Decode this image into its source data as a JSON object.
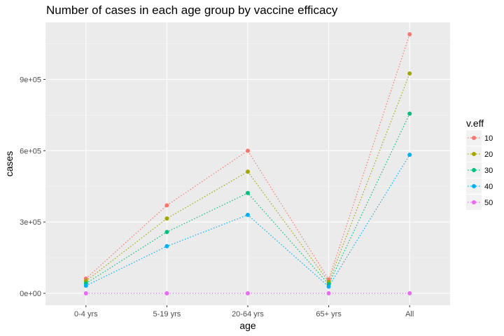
{
  "chart_data": {
    "type": "line",
    "title": "Number of cases in each age group by vaccine efficacy",
    "xlabel": "age",
    "ylabel": "cases",
    "categories": [
      "0-4 yrs",
      "5-19 yrs",
      "20-64 yrs",
      "65+ yrs",
      "All"
    ],
    "ylim": [
      -50000,
      1140000
    ],
    "yticks": [
      0,
      300000,
      600000,
      900000
    ],
    "ytick_labels": [
      "0e+00",
      "3e+05",
      "6e+05",
      "9e+05"
    ],
    "grid": true,
    "line_style": "dotted",
    "legend": {
      "title": "v.eff",
      "position": "right"
    },
    "series": [
      {
        "name": "10",
        "color": "#F8766D",
        "values": [
          62000,
          370000,
          600000,
          58000,
          1090000
        ]
      },
      {
        "name": "20",
        "color": "#A3A500",
        "values": [
          52000,
          315000,
          512000,
          48000,
          925000
        ]
      },
      {
        "name": "30",
        "color": "#00BF7D",
        "values": [
          42000,
          258000,
          422000,
          38000,
          756000
        ]
      },
      {
        "name": "40",
        "color": "#00B0F6",
        "values": [
          32000,
          198000,
          330000,
          28000,
          583000
        ]
      },
      {
        "name": "50",
        "color": "#E76BF3",
        "values": [
          0,
          0,
          0,
          0,
          0
        ]
      }
    ]
  }
}
